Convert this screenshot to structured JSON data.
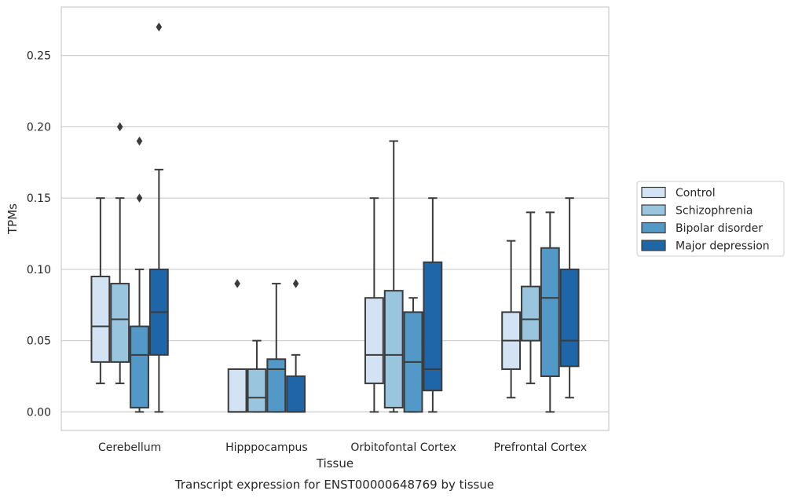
{
  "caption": "Transcript expression for ENST00000648769 by tissue",
  "chart_data": {
    "type": "box",
    "title": "",
    "xlabel": "Tissue",
    "ylabel": "TPMs",
    "ylim": [
      -0.013,
      0.284
    ],
    "yticks": [
      0.0,
      0.05,
      0.1,
      0.15,
      0.2,
      0.25
    ],
    "ytick_labels": [
      "0.00",
      "0.05",
      "0.10",
      "0.15",
      "0.20",
      "0.25"
    ],
    "grid": "horizontal",
    "legend_position": "outside-right",
    "categories": [
      "Cerebellum",
      "Hipppocampus",
      "Orbitofontal Cortex",
      "Prefrontal Cortex"
    ],
    "series": [
      {
        "name": "Control",
        "color": "#d3e3f3",
        "boxes": [
          {
            "whislo": 0.02,
            "q1": 0.035,
            "med": 0.06,
            "q3": 0.095,
            "whishi": 0.15,
            "fliers": []
          },
          {
            "whislo": 0.0,
            "q1": 0.0,
            "med": 0.0,
            "q3": 0.03,
            "whishi": 0.03,
            "fliers": [
              0.09
            ]
          },
          {
            "whislo": 0.0,
            "q1": 0.02,
            "med": 0.04,
            "q3": 0.08,
            "whishi": 0.15,
            "fliers": []
          },
          {
            "whislo": 0.01,
            "q1": 0.03,
            "med": 0.05,
            "q3": 0.07,
            "whishi": 0.12,
            "fliers": []
          }
        ]
      },
      {
        "name": "Schizophrenia",
        "color": "#9ac5df",
        "boxes": [
          {
            "whislo": 0.02,
            "q1": 0.035,
            "med": 0.065,
            "q3": 0.09,
            "whishi": 0.15,
            "fliers": [
              0.2
            ]
          },
          {
            "whislo": 0.0,
            "q1": 0.0,
            "med": 0.01,
            "q3": 0.03,
            "whishi": 0.05,
            "fliers": []
          },
          {
            "whislo": 0.0,
            "q1": 0.003,
            "med": 0.04,
            "q3": 0.085,
            "whishi": 0.19,
            "fliers": []
          },
          {
            "whislo": 0.02,
            "q1": 0.05,
            "med": 0.065,
            "q3": 0.088,
            "whishi": 0.14,
            "fliers": []
          }
        ]
      },
      {
        "name": "Bipolar disorder",
        "color": "#5299c8",
        "boxes": [
          {
            "whislo": 0.0,
            "q1": 0.003,
            "med": 0.04,
            "q3": 0.06,
            "whishi": 0.1,
            "fliers": [
              0.15,
              0.19
            ]
          },
          {
            "whislo": 0.0,
            "q1": 0.0,
            "med": 0.03,
            "q3": 0.037,
            "whishi": 0.09,
            "fliers": []
          },
          {
            "whislo": 0.0,
            "q1": 0.0,
            "med": 0.035,
            "q3": 0.07,
            "whishi": 0.08,
            "fliers": []
          },
          {
            "whislo": 0.0,
            "q1": 0.025,
            "med": 0.08,
            "q3": 0.115,
            "whishi": 0.14,
            "fliers": []
          }
        ]
      },
      {
        "name": "Major depression",
        "color": "#1f66a9",
        "boxes": [
          {
            "whislo": 0.0,
            "q1": 0.04,
            "med": 0.07,
            "q3": 0.1,
            "whishi": 0.17,
            "fliers": [
              0.27
            ]
          },
          {
            "whislo": 0.0,
            "q1": 0.0,
            "med": 0.0,
            "q3": 0.025,
            "whishi": 0.04,
            "fliers": [
              0.09
            ]
          },
          {
            "whislo": 0.0,
            "q1": 0.015,
            "med": 0.03,
            "q3": 0.105,
            "whishi": 0.15,
            "fliers": []
          },
          {
            "whislo": 0.01,
            "q1": 0.032,
            "med": 0.05,
            "q3": 0.1,
            "whishi": 0.15,
            "fliers": []
          }
        ]
      }
    ]
  }
}
